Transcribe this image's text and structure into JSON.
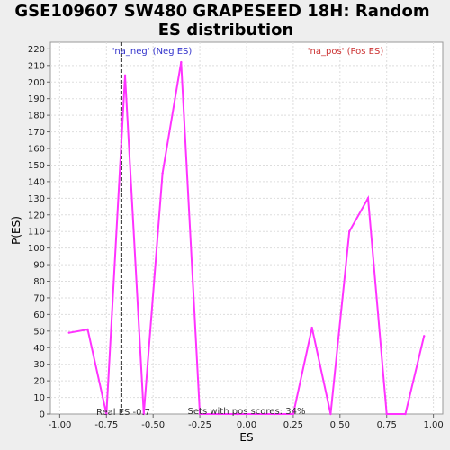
{
  "chart_data": {
    "type": "line",
    "title_line1": "GSE109607 SW480 GRAPESEED 18H: Random",
    "title_line2": "ES distribution",
    "xlabel": "ES",
    "ylabel": "P(ES)",
    "xlim": [
      -1.05,
      1.05
    ],
    "ylim": [
      0,
      224
    ],
    "x_ticks": [
      -1.0,
      -0.75,
      -0.5,
      -0.25,
      0.0,
      0.25,
      0.5,
      0.75,
      1.0
    ],
    "x_tick_labels": [
      "-1.00",
      "-0.75",
      "-0.50",
      "-0.25",
      "0.00",
      "0.25",
      "0.50",
      "0.75",
      "1.00"
    ],
    "y_ticks": [
      0,
      10,
      20,
      30,
      40,
      50,
      60,
      70,
      80,
      90,
      100,
      110,
      120,
      130,
      140,
      150,
      160,
      170,
      180,
      190,
      200,
      210,
      220
    ],
    "grid": true,
    "series": [
      {
        "color": "#ff33ff",
        "x": [
          -0.95,
          -0.85,
          -0.75,
          -0.65,
          -0.55,
          -0.45,
          -0.35,
          -0.25,
          -0.15,
          -0.05,
          0.05,
          0.15,
          0.25,
          0.35,
          0.45,
          0.55,
          0.65,
          0.75,
          0.85,
          0.95
        ],
        "y": [
          49,
          51,
          0,
          204,
          0,
          145,
          212,
          0,
          0,
          0,
          0,
          0,
          0,
          52,
          0,
          110,
          130,
          0,
          0,
          47
        ]
      }
    ],
    "real_es": -0.67,
    "annotations": {
      "neg": "'na_neg' (Neg ES)",
      "pos": "'na_pos' (Pos ES)",
      "real_es": "Real ES -0.7",
      "pos_scores": "Sets with pos scores: 34%"
    },
    "colors": {
      "neg": "#3333cc",
      "pos": "#cc3333",
      "line": "#ff33ff",
      "real_es_line": "#333333"
    }
  }
}
